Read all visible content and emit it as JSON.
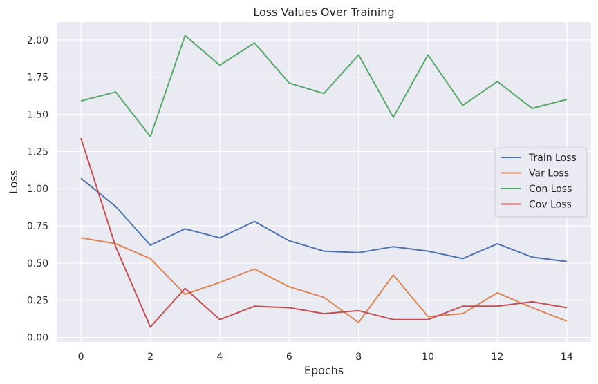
{
  "chart_data": {
    "type": "line",
    "title": "Loss Values Over Training",
    "xlabel": "Epochs",
    "ylabel": "Loss",
    "xlim": [
      -0.7,
      14.7
    ],
    "ylim": [
      -0.03,
      2.12
    ],
    "xticks": [
      "0",
      "2",
      "4",
      "6",
      "8",
      "10",
      "12",
      "14"
    ],
    "yticks": [
      "0.00",
      "0.25",
      "0.50",
      "0.75",
      "1.00",
      "1.25",
      "1.50",
      "1.75",
      "2.00"
    ],
    "grid": true,
    "legend_position": "center-right",
    "x": [
      0,
      1,
      2,
      3,
      4,
      5,
      6,
      7,
      8,
      9,
      10,
      11,
      12,
      13,
      14
    ],
    "series": [
      {
        "name": "Train Loss",
        "color": "#4c72b0",
        "values": [
          1.07,
          0.88,
          0.62,
          0.73,
          0.67,
          0.78,
          0.65,
          0.58,
          0.57,
          0.61,
          0.58,
          0.53,
          0.63,
          0.54,
          0.51
        ]
      },
      {
        "name": "Var Loss",
        "color": "#dd8452",
        "values": [
          0.67,
          0.63,
          0.53,
          0.29,
          0.37,
          0.46,
          0.34,
          0.27,
          0.1,
          0.42,
          0.14,
          0.16,
          0.3,
          0.2,
          0.11
        ]
      },
      {
        "name": "Con Loss",
        "color": "#55a868",
        "values": [
          1.59,
          1.65,
          1.35,
          2.03,
          1.83,
          1.98,
          1.71,
          1.64,
          1.9,
          1.48,
          1.9,
          1.56,
          1.72,
          1.54,
          1.6
        ]
      },
      {
        "name": "Cov Loss",
        "color": "#c44e52",
        "values": [
          1.34,
          0.61,
          0.07,
          0.33,
          0.12,
          0.21,
          0.2,
          0.16,
          0.18,
          0.12,
          0.12,
          0.21,
          0.21,
          0.24,
          0.2
        ]
      }
    ]
  }
}
